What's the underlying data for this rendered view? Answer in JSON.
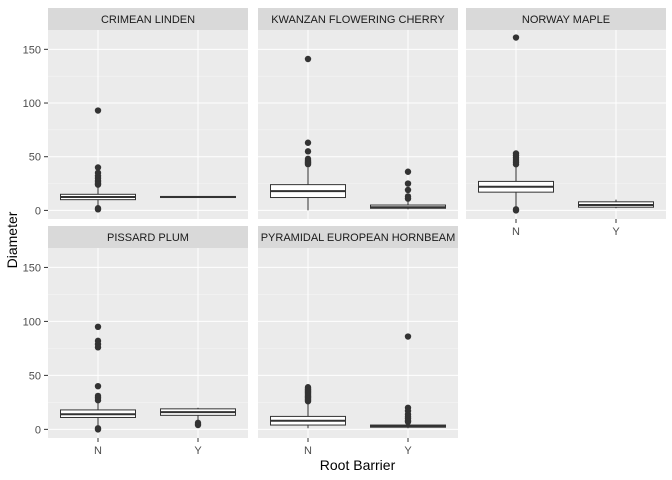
{
  "chart_data": {
    "type": "boxplot",
    "layout": "facet-wrap",
    "xlabel": "Root Barrier",
    "ylabel": "Diameter",
    "ylim": [
      -8,
      168
    ],
    "yticks": [
      0,
      50,
      100,
      150
    ],
    "ytick_labels": [
      "0",
      "50",
      "100",
      "150"
    ],
    "categories": [
      "N",
      "Y"
    ],
    "grid": true,
    "colors": {
      "panel_bg": "#ebebeb",
      "grid_major": "#ffffff",
      "strip_bg": "#d9d9d9",
      "box_fill": "#ffffff",
      "box_line": "#333333",
      "outlier": "#333333"
    },
    "panels": [
      {
        "title": "CRIMEAN LINDEN",
        "boxes": [
          {
            "category": "N",
            "min": 3,
            "q1": 10,
            "median": 12.5,
            "q3": 15,
            "max": 22,
            "outliers": [
              93,
              40,
              35,
              32,
              30,
              28,
              27,
              25,
              24,
              2,
              1
            ]
          },
          {
            "category": "Y",
            "min": 12,
            "q1": 12,
            "median": 12.5,
            "q3": 13,
            "max": 13,
            "outliers": []
          }
        ]
      },
      {
        "title": "KWANZAN FLOWERING CHERRY",
        "boxes": [
          {
            "category": "N",
            "min": 0,
            "q1": 12,
            "median": 18,
            "q3": 24,
            "max": 40,
            "outliers": [
              141,
              63,
              55,
              48,
              46,
              45,
              44,
              43
            ]
          },
          {
            "category": "Y",
            "min": 1,
            "q1": 2,
            "median": 3,
            "q3": 5,
            "max": 9,
            "outliers": [
              36,
              25,
              19,
              13,
              11
            ]
          }
        ]
      },
      {
        "title": "NORWAY MAPLE",
        "boxes": [
          {
            "category": "N",
            "min": 3,
            "q1": 17,
            "median": 22,
            "q3": 27,
            "max": 41,
            "outliers": [
              161,
              53,
              51,
              49,
              47,
              45,
              43,
              1,
              0
            ]
          },
          {
            "category": "Y",
            "min": 2,
            "q1": 3,
            "median": 5,
            "q3": 8,
            "max": 10,
            "outliers": []
          }
        ]
      },
      {
        "title": "PISSARD PLUM",
        "boxes": [
          {
            "category": "N",
            "min": 2,
            "q1": 11,
            "median": 14,
            "q3": 18,
            "max": 26,
            "outliers": [
              95,
              82,
              79,
              76,
              40,
              31,
              29,
              27,
              1,
              0
            ]
          },
          {
            "category": "Y",
            "min": 8,
            "q1": 13,
            "median": 16,
            "q3": 19,
            "max": 20,
            "outliers": [
              6,
              4
            ]
          }
        ]
      },
      {
        "title": "PYRAMIDAL EUROPEAN HORNBEAM",
        "boxes": [
          {
            "category": "N",
            "min": 1,
            "q1": 4,
            "median": 8,
            "q3": 12,
            "max": 24,
            "outliers": [
              39,
              38,
              37,
              36,
              35,
              34,
              33,
              32,
              31,
              30,
              29,
              28,
              27,
              26
            ]
          },
          {
            "category": "Y",
            "min": 1,
            "q1": 2,
            "median": 3,
            "q3": 4,
            "max": 5,
            "outliers": [
              86,
              20,
              17,
              14,
              12,
              10,
              8,
              7
            ]
          }
        ]
      }
    ]
  }
}
